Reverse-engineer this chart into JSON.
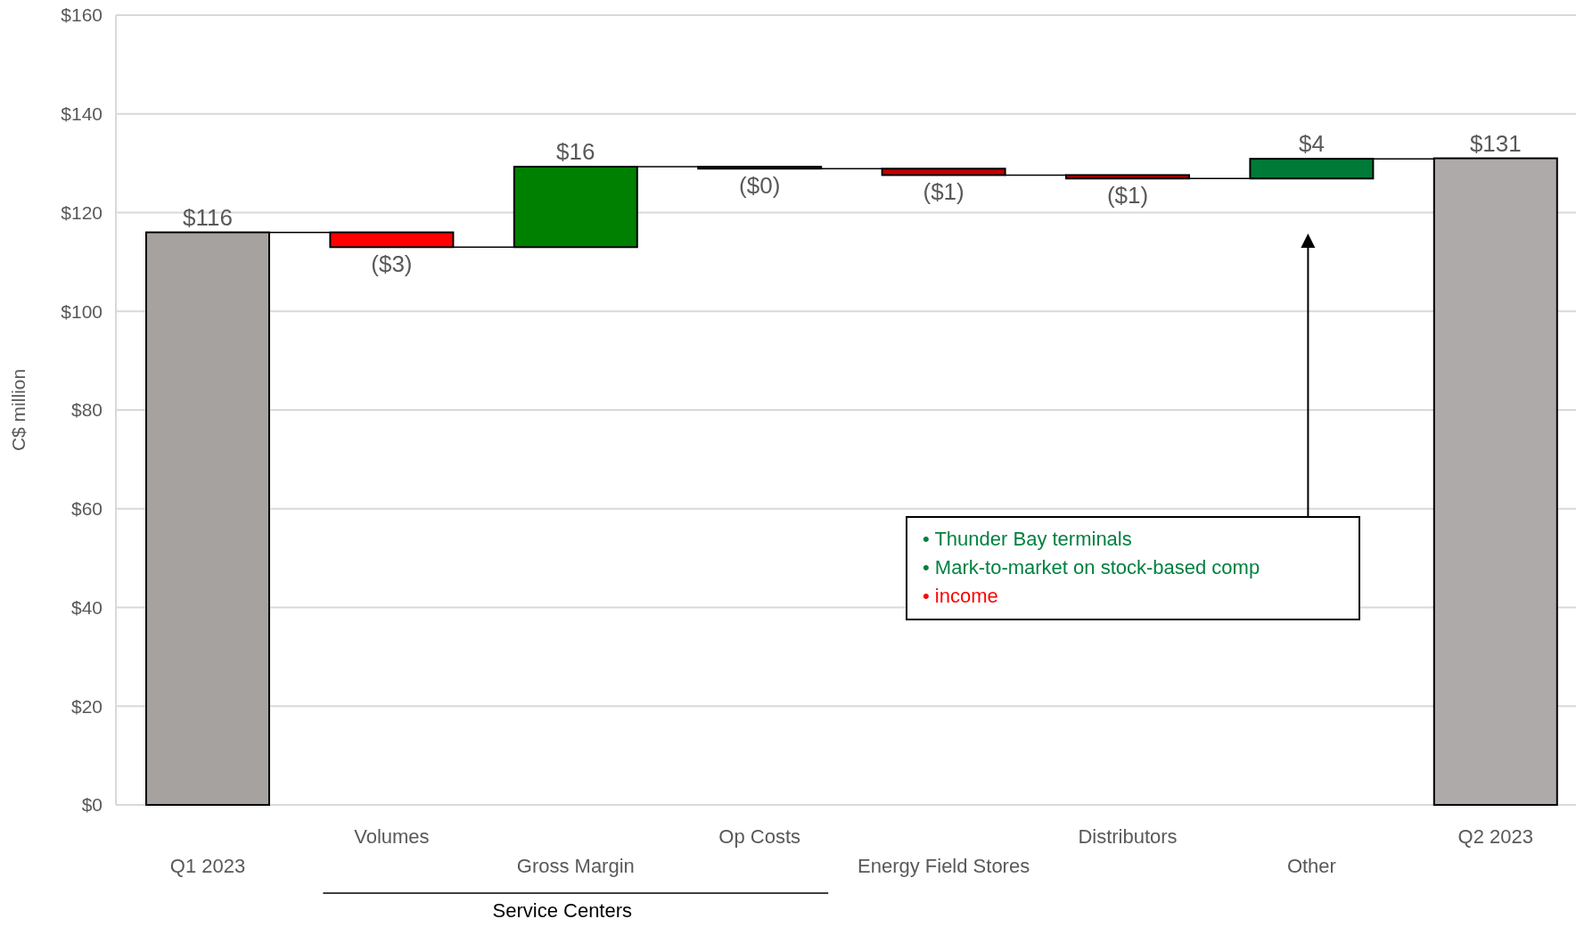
{
  "chart_data": {
    "type": "bar",
    "ylabel": "C$ million",
    "categories": [
      "Q1 2023",
      "Volumes",
      "Gross Margin",
      "Op Costs",
      "Energy Field Stores",
      "Distributors",
      "Other",
      "Q2 2023"
    ],
    "values": [
      116,
      -3,
      16.3,
      -0.4,
      -1.3,
      -0.7,
      4,
      131
    ],
    "base": [
      0,
      116,
      113,
      129.3,
      128.9,
      127.6,
      126.9,
      0
    ],
    "colors": [
      "#a6a2a0",
      "#ff0000",
      "#008000",
      "#c00000",
      "#c00000",
      "#c00000",
      "#007a37",
      "#aeaaaa"
    ],
    "value_labels": [
      "$116",
      "($3)",
      "$16",
      "($0)",
      "($1)",
      "($1)",
      "$4",
      "$131"
    ],
    "ylim": [
      0,
      160
    ],
    "yticks": [
      {
        "value": 0,
        "label": "$0"
      },
      {
        "value": 20,
        "label": "$20"
      },
      {
        "value": 40,
        "label": "$40"
      },
      {
        "value": 60,
        "label": "$60"
      },
      {
        "value": 80,
        "label": "$80"
      },
      {
        "value": 100,
        "label": "$100"
      },
      {
        "value": 120,
        "label": "$120"
      },
      {
        "value": 140,
        "label": "$140"
      },
      {
        "value": 160,
        "label": "$160"
      }
    ],
    "grid": "y",
    "annotations": [
      "Service Centers",
      "• Thunder Bay terminals",
      "• Mark-to-market on stock-based comp",
      "• income"
    ]
  }
}
